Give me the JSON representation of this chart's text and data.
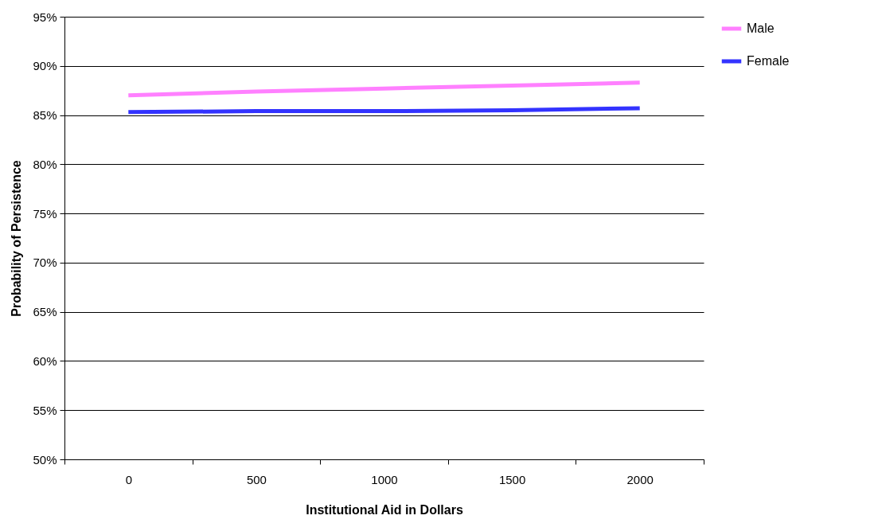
{
  "chart_data": {
    "type": "line",
    "xlabel": "Institutional Aid in Dollars",
    "ylabel": "Probability of Persistence",
    "categories": [
      "0",
      "500",
      "1000",
      "1500",
      "2000"
    ],
    "series": [
      {
        "name": "Male",
        "color": "#ff80ff",
        "values": [
          87.0,
          87.4,
          87.7,
          88.0,
          88.3
        ]
      },
      {
        "name": "Female",
        "color": "#3333ff",
        "values": [
          85.3,
          85.4,
          85.4,
          85.5,
          85.7
        ]
      }
    ],
    "ylim": [
      50,
      95
    ],
    "yticks": [
      {
        "value": 50,
        "label": "50%"
      },
      {
        "value": 55,
        "label": "55%"
      },
      {
        "value": 60,
        "label": "60%"
      },
      {
        "value": 65,
        "label": "65%"
      },
      {
        "value": 70,
        "label": "70%"
      },
      {
        "value": 75,
        "label": "75%"
      },
      {
        "value": 80,
        "label": "80%"
      },
      {
        "value": 85,
        "label": "85%"
      },
      {
        "value": 90,
        "label": "90%"
      },
      {
        "value": 95,
        "label": "95%"
      }
    ],
    "grid": "y",
    "legend": "right",
    "marker": "none",
    "line_style": "solid"
  }
}
